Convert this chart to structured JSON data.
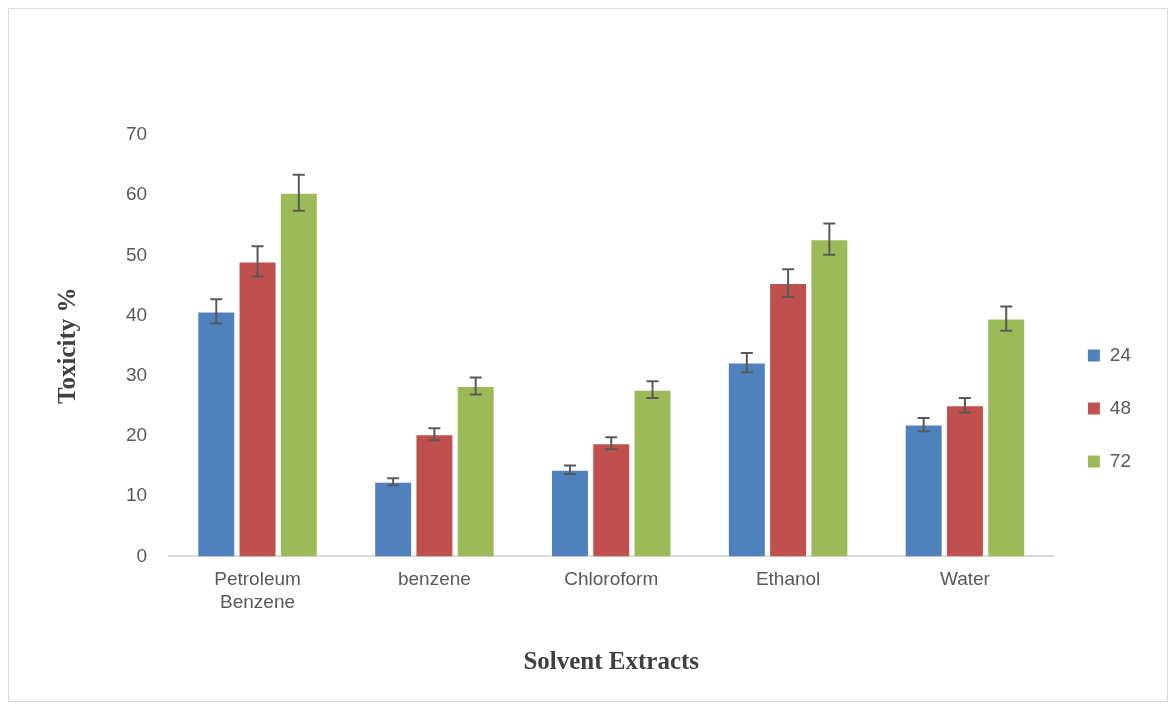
{
  "chart_data": {
    "type": "bar",
    "xlabel": "Solvent Extracts",
    "ylabel": "Toxicity %",
    "categories": [
      "Petroleum Benzene",
      "benzene",
      "Chloroform",
      "Ethanol",
      "Water"
    ],
    "series": [
      {
        "name": "24",
        "color": "#4f81bd",
        "values": [
          40.7,
          12.4,
          14.4,
          32.2,
          21.9
        ],
        "errors": [
          2.0,
          0.6,
          0.7,
          1.6,
          1.1
        ]
      },
      {
        "name": "48",
        "color": "#c0504d",
        "values": [
          49.0,
          20.3,
          18.8,
          45.4,
          25.1
        ],
        "errors": [
          2.5,
          1.0,
          1.0,
          2.3,
          1.2
        ]
      },
      {
        "name": "72",
        "color": "#9bbb59",
        "values": [
          60.4,
          28.3,
          27.7,
          52.7,
          39.5
        ],
        "errors": [
          3.0,
          1.4,
          1.4,
          2.6,
          2.0
        ]
      }
    ],
    "ylim": [
      0,
      70
    ],
    "yticks": [
      0,
      10,
      20,
      30,
      40,
      50,
      60,
      70
    ],
    "grid": false,
    "legend": "right"
  }
}
